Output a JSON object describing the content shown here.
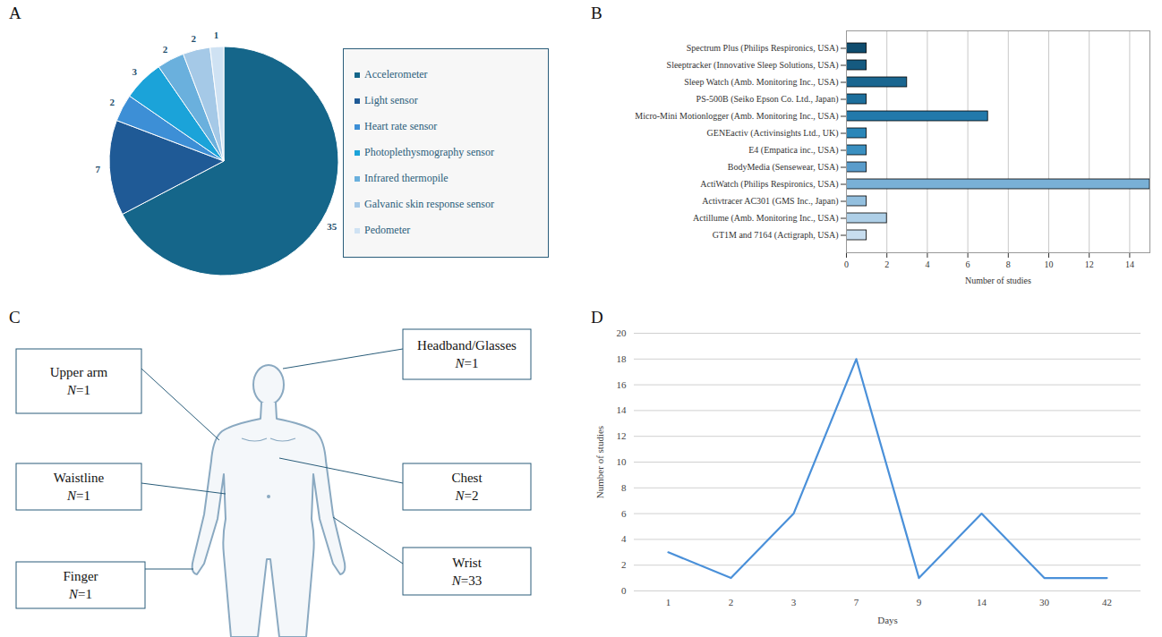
{
  "chart_data": [
    {
      "panel": "A",
      "type": "pie",
      "categories": [
        "Accelerometer",
        "Light sensor",
        "Heart rate sensor",
        "Photoplethysmography sensor",
        "Infrared thermopile",
        "Galvanic skin response sensor",
        "Pedometer"
      ],
      "values": [
        35,
        7,
        2,
        3,
        2,
        2,
        1
      ],
      "colors": [
        "#15668a",
        "#1f5a96",
        "#3d8fd6",
        "#1ba3d9",
        "#6ab0dd",
        "#a5c9e7",
        "#cfe2f3"
      ],
      "data_labels": true,
      "legend": "right"
    },
    {
      "panel": "B",
      "type": "bar",
      "orientation": "horizontal",
      "categories": [
        "Spectrum Plus (Philips Respironics, USA)",
        "Sleeptracker (Innovative Sleep Solutions, USA)",
        "Sleep Watch (Amb. Monitoring Inc., USA)",
        "PS-500B (Seiko Epson Co. Ltd., Japan)",
        "Micro-Mini Motionlogger (Amb. Monitoring Inc., USA)",
        "GENEactiv (Activinsights Ltd., UK)",
        "E4 (Empatica inc., USA)",
        "BodyMedia (Sensewear, USA)",
        "ActiWatch (Philips Respironics, USA)",
        "Activtracer AC301 (GMS Inc., Japan)",
        "Actillume (Amb. Monitoring Inc., USA)",
        "GT1M and 7164 (Actigraph, USA)"
      ],
      "values": [
        1,
        1,
        3,
        1,
        7,
        1,
        1,
        1,
        15,
        1,
        2,
        1
      ],
      "colors": [
        "#0f4c6e",
        "#155a80",
        "#1a6690",
        "#1d6f9c",
        "#2279ab",
        "#2a86b8",
        "#3a8fc0",
        "#5a9ccb",
        "#79b0d6",
        "#93bfde",
        "#aecfe7",
        "#c7ddef"
      ],
      "xlim": [
        0,
        15
      ],
      "xticks": [
        0,
        2,
        4,
        6,
        8,
        10,
        12,
        14
      ],
      "x_label": "Number of studies",
      "grid": true
    },
    {
      "panel": "C",
      "type": "diagram",
      "nodes": [
        {
          "label": "Headband/Glasses",
          "count": "N=1"
        },
        {
          "label": "Upper arm",
          "count": "N=1"
        },
        {
          "label": "Chest",
          "count": "N=2"
        },
        {
          "label": "Waistline",
          "count": "N=1"
        },
        {
          "label": "Wrist",
          "count": "N=33"
        },
        {
          "label": "Finger",
          "count": "N=1"
        }
      ]
    },
    {
      "panel": "D",
      "type": "line",
      "categories": [
        "1",
        "2",
        "3",
        "7",
        "9",
        "14",
        "30",
        "42"
      ],
      "values": [
        3,
        1,
        6,
        18,
        1,
        6,
        1,
        1
      ],
      "color": "#4a90d9",
      "ylim": [
        0,
        20
      ],
      "yticks": [
        0,
        2,
        4,
        6,
        8,
        10,
        12,
        14,
        16,
        18,
        20
      ],
      "x_label": "Days",
      "y_label": "Number of studies",
      "grid": true
    }
  ]
}
